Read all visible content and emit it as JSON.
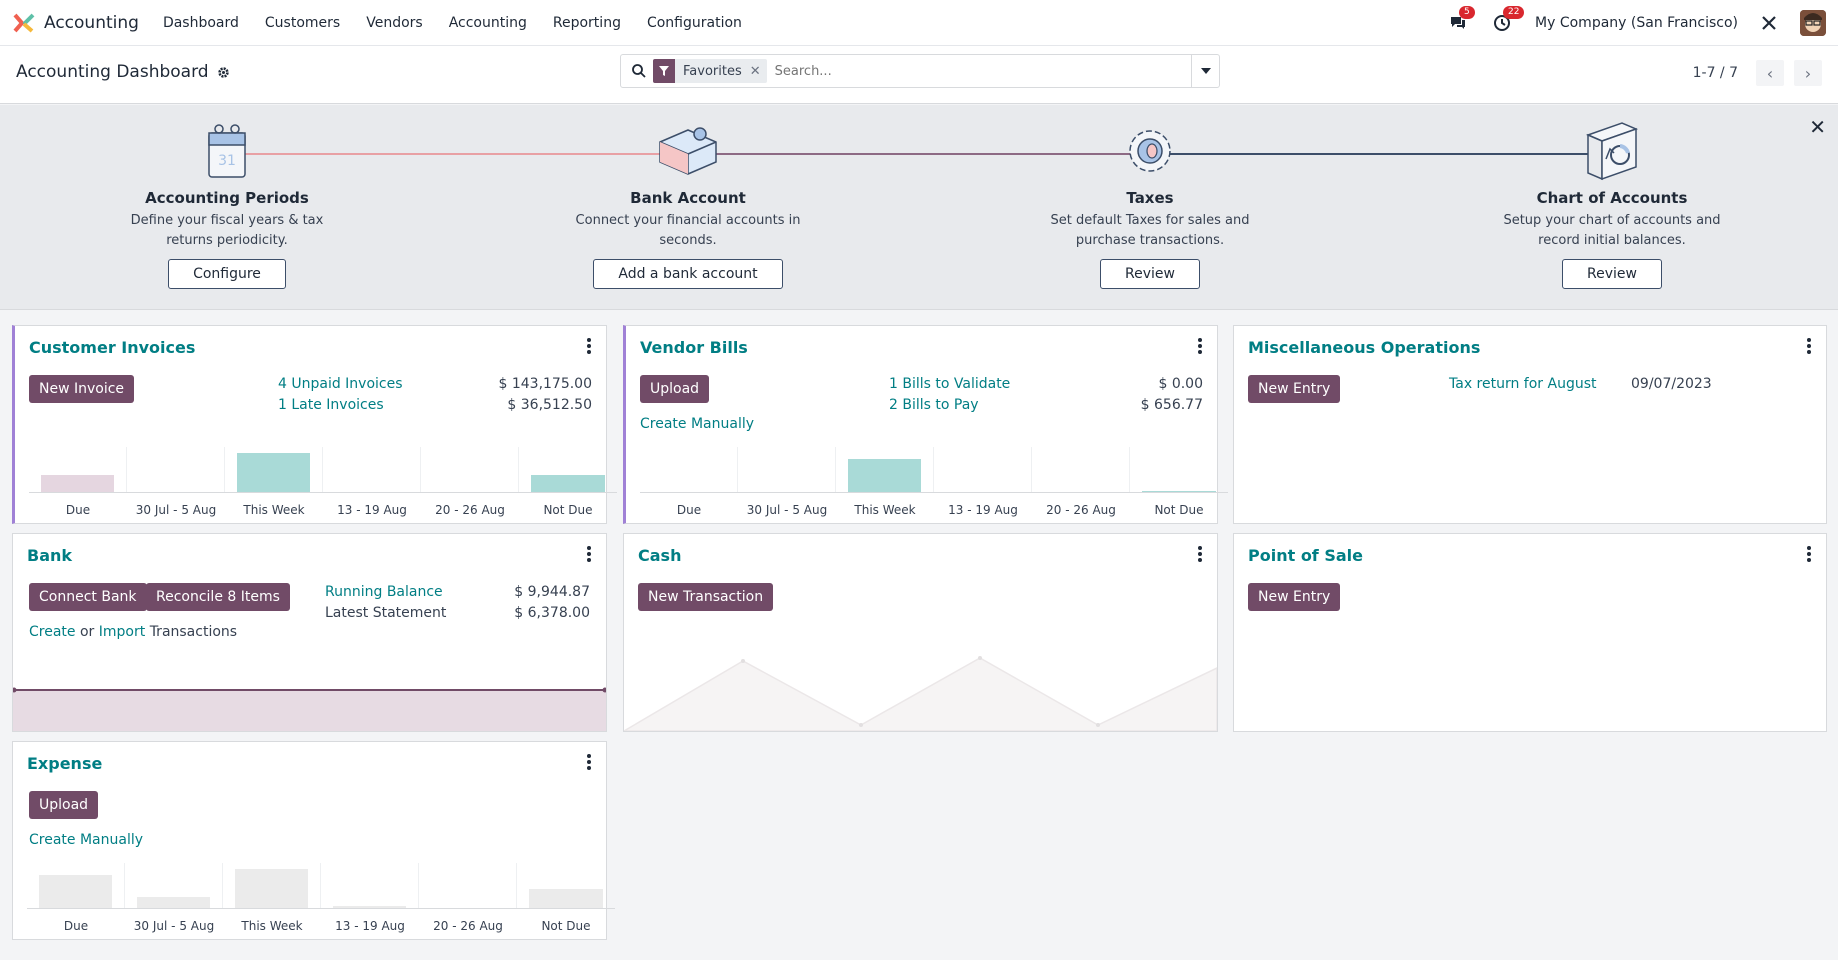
{
  "navbar": {
    "app_name": "Accounting",
    "items": [
      "Dashboard",
      "Customers",
      "Vendors",
      "Accounting",
      "Reporting",
      "Configuration"
    ],
    "messages_badge": "5",
    "activities_badge": "22",
    "company": "My Company (San Francisco)"
  },
  "control": {
    "title": "Accounting Dashboard",
    "facet": "Favorites",
    "search_placeholder": "Search...",
    "pager": "1-7 / 7"
  },
  "onboarding": {
    "steps": [
      {
        "title": "Accounting Periods",
        "desc": "Define your fiscal years & tax returns periodicity.",
        "button": "Configure"
      },
      {
        "title": "Bank Account",
        "desc": "Connect your financial accounts in seconds.",
        "button": "Add a bank account"
      },
      {
        "title": "Taxes",
        "desc": "Set default Taxes for sales and purchase transactions.",
        "button": "Review"
      },
      {
        "title": "Chart of Accounts",
        "desc": "Setup your chart of accounts and record initial balances.",
        "button": "Review"
      }
    ]
  },
  "cards": {
    "customer_invoices": {
      "title": "Customer Invoices",
      "button": "New Invoice",
      "rows": [
        {
          "label": "4 Unpaid Invoices",
          "amount": "$ 143,175.00"
        },
        {
          "label": "1 Late Invoices",
          "amount": "$ 36,512.50"
        }
      ]
    },
    "vendor_bills": {
      "title": "Vendor Bills",
      "button": "Upload",
      "link": "Create Manually",
      "rows": [
        {
          "label": "1 Bills to Validate",
          "amount": "$ 0.00"
        },
        {
          "label": "2 Bills to Pay",
          "amount": "$ 656.77"
        }
      ]
    },
    "misc": {
      "title": "Miscellaneous Operations",
      "button": "New Entry",
      "row_label": "Tax return for August",
      "row_date": "09/07/2023"
    },
    "bank": {
      "title": "Bank",
      "button_connect": "Connect Bank",
      "button_reconcile": "Reconcile 8 Items",
      "create": "Create",
      "or": "or",
      "import": "Import",
      "transactions": "Transactions",
      "running_label": "Running Balance",
      "running_amount": "$ 9,944.87",
      "statement_label": "Latest Statement",
      "statement_amount": "$ 6,378.00"
    },
    "cash": {
      "title": "Cash",
      "button": "New Transaction"
    },
    "pos": {
      "title": "Point of Sale",
      "button": "New Entry"
    },
    "expense": {
      "title": "Expense",
      "button": "Upload",
      "link": "Create Manually"
    }
  },
  "chart_data": [
    {
      "type": "bar",
      "name": "customer_invoices",
      "categories": [
        "Due",
        "30 Jul - 5 Aug",
        "This Week",
        "13 - 19 Aug",
        "20 - 26 Aug",
        "Not Due"
      ],
      "values": [
        0.45,
        0,
        1.0,
        0,
        0,
        0.45
      ],
      "colors": [
        "#e5d6e0",
        "#a9dad7",
        "#a9dad7",
        "#a9dad7",
        "#a9dad7",
        "#a9dad7"
      ]
    },
    {
      "type": "bar",
      "name": "vendor_bills",
      "categories": [
        "Due",
        "30 Jul - 5 Aug",
        "This Week",
        "13 - 19 Aug",
        "20 - 26 Aug",
        "Not Due"
      ],
      "values": [
        0,
        0,
        0.85,
        0,
        0,
        0.04
      ],
      "colors": [
        "#a9dad7",
        "#a9dad7",
        "#a9dad7",
        "#a9dad7",
        "#a9dad7",
        "#a9dad7"
      ]
    },
    {
      "type": "bar",
      "name": "expense",
      "categories": [
        "Due",
        "30 Jul - 5 Aug",
        "This Week",
        "13 - 19 Aug",
        "20 - 26 Aug",
        "Not Due"
      ],
      "values": [
        0.85,
        0.3,
        1.0,
        0.08,
        0,
        0.5
      ],
      "colors": [
        "#ebebeb",
        "#ebebeb",
        "#ebebeb",
        "#ebebeb",
        "#ebebeb",
        "#ebebeb"
      ]
    }
  ],
  "colors": {
    "accent": "#714b67",
    "link": "#017e84",
    "card_border_accent": "#a081d6"
  }
}
